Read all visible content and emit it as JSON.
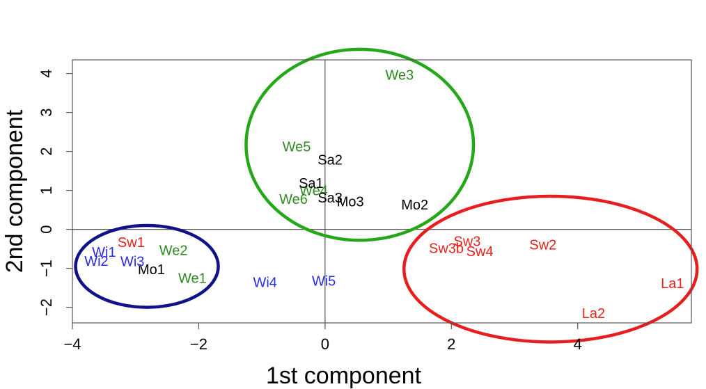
{
  "chart_data": {
    "type": "scatter",
    "title": "",
    "xlabel": "1st component",
    "ylabel": "2nd component",
    "xlim": [
      -4.0,
      5.8
    ],
    "ylim": [
      -2.4,
      4.35
    ],
    "x_ticks": [
      -4,
      -2,
      0,
      2,
      4
    ],
    "x_tick_labels": [
      "−4",
      "−2",
      "0",
      "2",
      "4"
    ],
    "y_ticks": [
      -2,
      -1,
      0,
      1,
      2,
      3,
      4
    ],
    "y_tick_labels": [
      "−2",
      "−1",
      "0",
      "1",
      "2",
      "3",
      "4"
    ],
    "reference_lines": {
      "x": 0,
      "y": 0
    },
    "grid": false,
    "legend": "none",
    "groups": [
      {
        "color": "#2f8a22",
        "points": [
          {
            "label": "We3",
            "x": 1.18,
            "y": 3.95
          },
          {
            "label": "We5",
            "x": -0.45,
            "y": 2.11
          },
          {
            "label": "We4",
            "x": -0.18,
            "y": 0.98
          },
          {
            "label": "We6",
            "x": -0.5,
            "y": 0.76
          },
          {
            "label": "We2",
            "x": -2.4,
            "y": -0.55
          },
          {
            "label": "We1",
            "x": -2.1,
            "y": -1.27
          }
        ]
      },
      {
        "color": "#000000",
        "points": [
          {
            "label": "Sa2",
            "x": 0.08,
            "y": 1.77
          },
          {
            "label": "Sa1",
            "x": -0.22,
            "y": 1.17
          },
          {
            "label": "Sa3",
            "x": 0.08,
            "y": 0.8
          },
          {
            "label": "Mo3",
            "x": 0.4,
            "y": 0.7
          },
          {
            "label": "Mo2",
            "x": 1.42,
            "y": 0.62
          },
          {
            "label": "Mo1",
            "x": -2.75,
            "y": -1.04
          }
        ]
      },
      {
        "color": "#e8221c",
        "points": [
          {
            "label": "Sw1",
            "x": -3.07,
            "y": -0.35
          },
          {
            "label": "Sw3",
            "x": 2.25,
            "y": -0.32
          },
          {
            "label": "Sw3b",
            "x": 1.92,
            "y": -0.5
          },
          {
            "label": "Sw4",
            "x": 2.45,
            "y": -0.58
          },
          {
            "label": "Sw2",
            "x": 3.45,
            "y": -0.41
          },
          {
            "label": "La1",
            "x": 5.5,
            "y": -1.4
          },
          {
            "label": "La2",
            "x": 4.25,
            "y": -2.17
          }
        ]
      },
      {
        "color": "#2a2de0",
        "points": [
          {
            "label": "Wi1",
            "x": -3.5,
            "y": -0.6
          },
          {
            "label": "Wi2",
            "x": -3.62,
            "y": -0.83
          },
          {
            "label": "Wi3",
            "x": -3.05,
            "y": -0.84
          },
          {
            "label": "Wi4",
            "x": -0.95,
            "y": -1.37
          },
          {
            "label": "Wi5",
            "x": -0.02,
            "y": -1.34
          }
        ]
      }
    ],
    "highlights": [
      {
        "color": "#26a71a",
        "cx": 0.55,
        "cy": 2.17,
        "rx": 1.8,
        "ry": 2.45
      },
      {
        "color": "#10128a",
        "cx": -2.82,
        "cy": -0.95,
        "rx": 1.13,
        "ry": 1.05
      },
      {
        "color": "#e61e1e",
        "cx": 3.57,
        "cy": -1.02,
        "rx": 2.32,
        "ry": 1.87
      }
    ]
  }
}
